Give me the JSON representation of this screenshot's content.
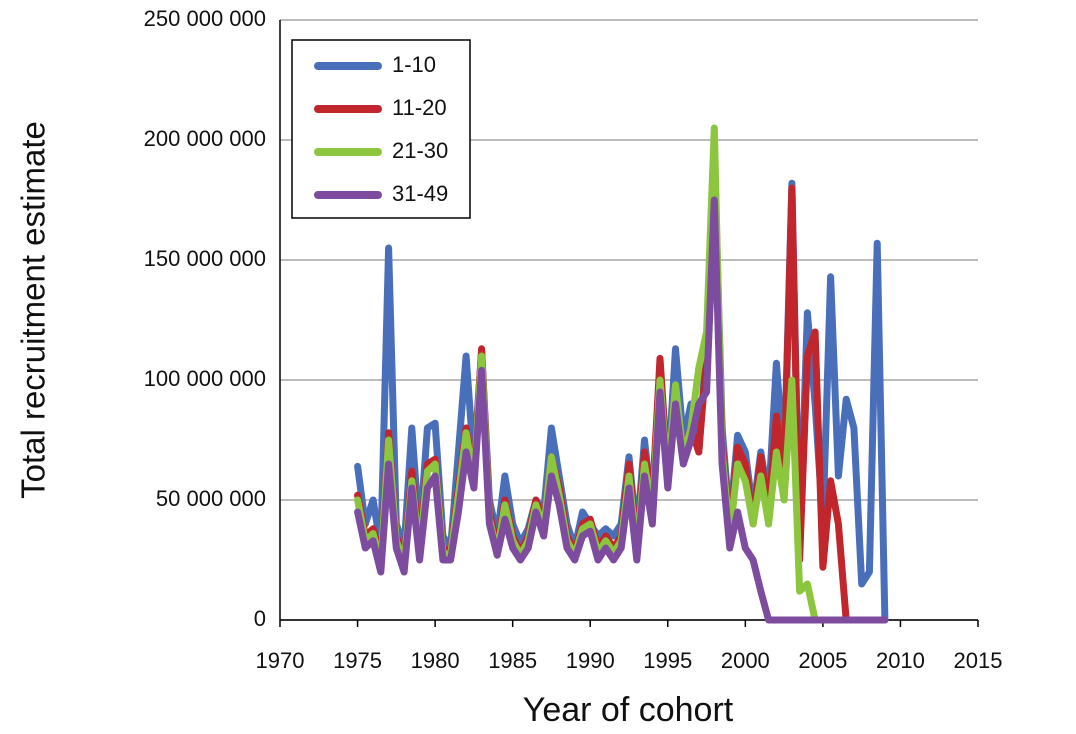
{
  "chart_data": {
    "type": "line",
    "xlabel": "Year of cohort",
    "ylabel": "Total recruitment estimate",
    "x": [
      1975,
      1975.5,
      1976,
      1976.5,
      1977,
      1977.5,
      1978,
      1978.5,
      1979,
      1979.5,
      1980,
      1980.5,
      1981,
      1981.5,
      1982,
      1982.5,
      1983,
      1983.5,
      1984,
      1984.5,
      1985,
      1985.5,
      1986,
      1986.5,
      1987,
      1987.5,
      1988,
      1988.5,
      1989,
      1989.5,
      1990,
      1990.5,
      1991,
      1991.5,
      1992,
      1992.5,
      1993,
      1993.5,
      1994,
      1994.5,
      1995,
      1995.5,
      1996,
      1996.5,
      1997,
      1997.5,
      1998,
      1998.5,
      1999,
      1999.5,
      2000,
      2000.5,
      2001,
      2001.5,
      2002,
      2002.5,
      2003,
      2003.5,
      2004,
      2004.5,
      2005,
      2005.5,
      2006,
      2006.5,
      2007,
      2007.5,
      2008,
      2008.5,
      2009
    ],
    "series": [
      {
        "name": "1-10",
        "color": "#4a6fba",
        "values": [
          64000000,
          40000000,
          50000000,
          30000000,
          155000000,
          40000000,
          30000000,
          80000000,
          35000000,
          80000000,
          82000000,
          35000000,
          30000000,
          70000000,
          110000000,
          65000000,
          112000000,
          50000000,
          35000000,
          60000000,
          40000000,
          32000000,
          38000000,
          50000000,
          45000000,
          80000000,
          60000000,
          40000000,
          30000000,
          45000000,
          40000000,
          35000000,
          38000000,
          35000000,
          40000000,
          68000000,
          35000000,
          75000000,
          45000000,
          100000000,
          60000000,
          113000000,
          75000000,
          90000000,
          70000000,
          115000000,
          195000000,
          80000000,
          40000000,
          77000000,
          70000000,
          45000000,
          70000000,
          50000000,
          107000000,
          65000000,
          182000000,
          30000000,
          128000000,
          90000000,
          40000000,
          143000000,
          60000000,
          92000000,
          80000000,
          15000000,
          20000000,
          157000000,
          0
        ]
      },
      {
        "name": "11-20",
        "color": "#c0262b",
        "values": [
          52000000,
          35000000,
          38000000,
          25000000,
          78000000,
          35000000,
          25000000,
          62000000,
          30000000,
          65000000,
          67000000,
          30000000,
          28000000,
          55000000,
          80000000,
          60000000,
          113000000,
          45000000,
          30000000,
          50000000,
          35000000,
          28000000,
          35000000,
          50000000,
          40000000,
          68000000,
          55000000,
          35000000,
          28000000,
          40000000,
          42000000,
          30000000,
          35000000,
          30000000,
          35000000,
          65000000,
          30000000,
          70000000,
          50000000,
          109000000,
          60000000,
          95000000,
          70000000,
          80000000,
          70000000,
          110000000,
          190000000,
          75000000,
          35000000,
          72000000,
          65000000,
          40000000,
          68000000,
          45000000,
          85000000,
          60000000,
          180000000,
          25000000,
          110000000,
          120000000,
          22000000,
          58000000,
          40000000,
          0,
          0,
          0,
          0,
          0,
          0
        ]
      },
      {
        "name": "21-30",
        "color": "#8cc63f",
        "values": [
          50000000,
          33000000,
          36000000,
          23000000,
          75000000,
          33000000,
          24000000,
          58000000,
          28000000,
          62000000,
          65000000,
          28000000,
          27000000,
          52000000,
          78000000,
          58000000,
          110000000,
          42000000,
          28000000,
          48000000,
          33000000,
          27000000,
          33000000,
          48000000,
          38000000,
          68000000,
          52000000,
          33000000,
          27000000,
          38000000,
          40000000,
          28000000,
          33000000,
          28000000,
          33000000,
          60000000,
          28000000,
          65000000,
          45000000,
          100000000,
          58000000,
          98000000,
          68000000,
          80000000,
          105000000,
          120000000,
          205000000,
          70000000,
          35000000,
          65000000,
          58000000,
          40000000,
          60000000,
          40000000,
          70000000,
          50000000,
          100000000,
          12000000,
          15000000,
          0,
          0,
          0,
          0,
          0,
          0,
          0,
          0,
          0,
          0
        ]
      },
      {
        "name": "31-49",
        "color": "#7d4c9e",
        "values": [
          45000000,
          30000000,
          33000000,
          20000000,
          65000000,
          30000000,
          20000000,
          55000000,
          25000000,
          55000000,
          60000000,
          25000000,
          25000000,
          45000000,
          70000000,
          55000000,
          104000000,
          40000000,
          27000000,
          42000000,
          30000000,
          25000000,
          30000000,
          45000000,
          35000000,
          60000000,
          48000000,
          30000000,
          25000000,
          35000000,
          37000000,
          25000000,
          30000000,
          25000000,
          30000000,
          55000000,
          25000000,
          60000000,
          40000000,
          95000000,
          55000000,
          90000000,
          65000000,
          75000000,
          90000000,
          95000000,
          175000000,
          65000000,
          30000000,
          45000000,
          30000000,
          25000000,
          12000000,
          0,
          0,
          0,
          0,
          0,
          0,
          0,
          0,
          0,
          0,
          0,
          0,
          0,
          0,
          0,
          0
        ]
      }
    ],
    "xlim": [
      1970,
      2015
    ],
    "xticks": [
      1970,
      1975,
      1980,
      1985,
      1990,
      1995,
      2000,
      2005,
      2010,
      2015
    ],
    "ylim": [
      0,
      250000000
    ],
    "yticks": [
      0,
      {
        "value": 50000000,
        "label": "50 000 000"
      },
      {
        "value": 100000000,
        "label": "100 000 000"
      },
      {
        "value": 150000000,
        "label": "150 000 000"
      },
      {
        "value": 200000000,
        "label": "200 000 000"
      },
      {
        "value": 250000000,
        "label": "250 000 000"
      }
    ],
    "grid": true,
    "legend": "upper left"
  }
}
